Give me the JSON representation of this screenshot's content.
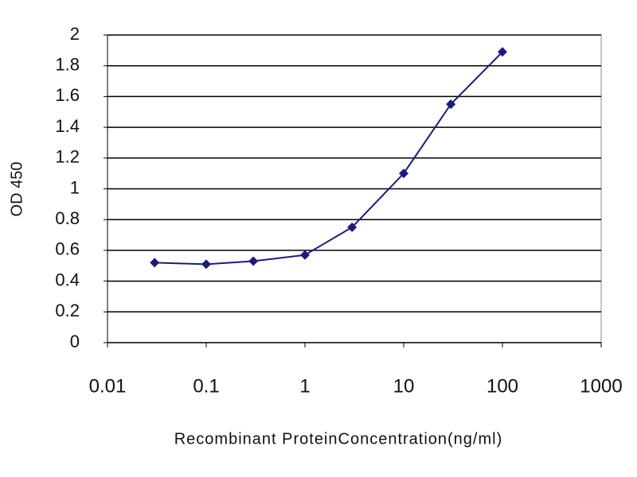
{
  "chart_data": {
    "type": "line",
    "x": [
      0.03,
      0.1,
      0.3,
      1,
      3,
      10,
      30,
      100
    ],
    "values": [
      0.52,
      0.51,
      0.53,
      0.57,
      0.75,
      1.1,
      1.55,
      1.89
    ],
    "color": "#1a1a80",
    "xscale": "log",
    "xlim": [
      0.01,
      1000
    ],
    "xticks": [
      0.01,
      0.1,
      1,
      10,
      100,
      1000
    ],
    "ylim": [
      0,
      2
    ],
    "yticks": [
      0,
      0.2,
      0.4,
      0.6,
      0.8,
      1,
      1.2,
      1.4,
      1.6,
      1.8,
      2
    ],
    "grid": true,
    "xlabel": "Recombinant ProteinConcentration(ng/ml)",
    "ylabel": "OD 450"
  }
}
